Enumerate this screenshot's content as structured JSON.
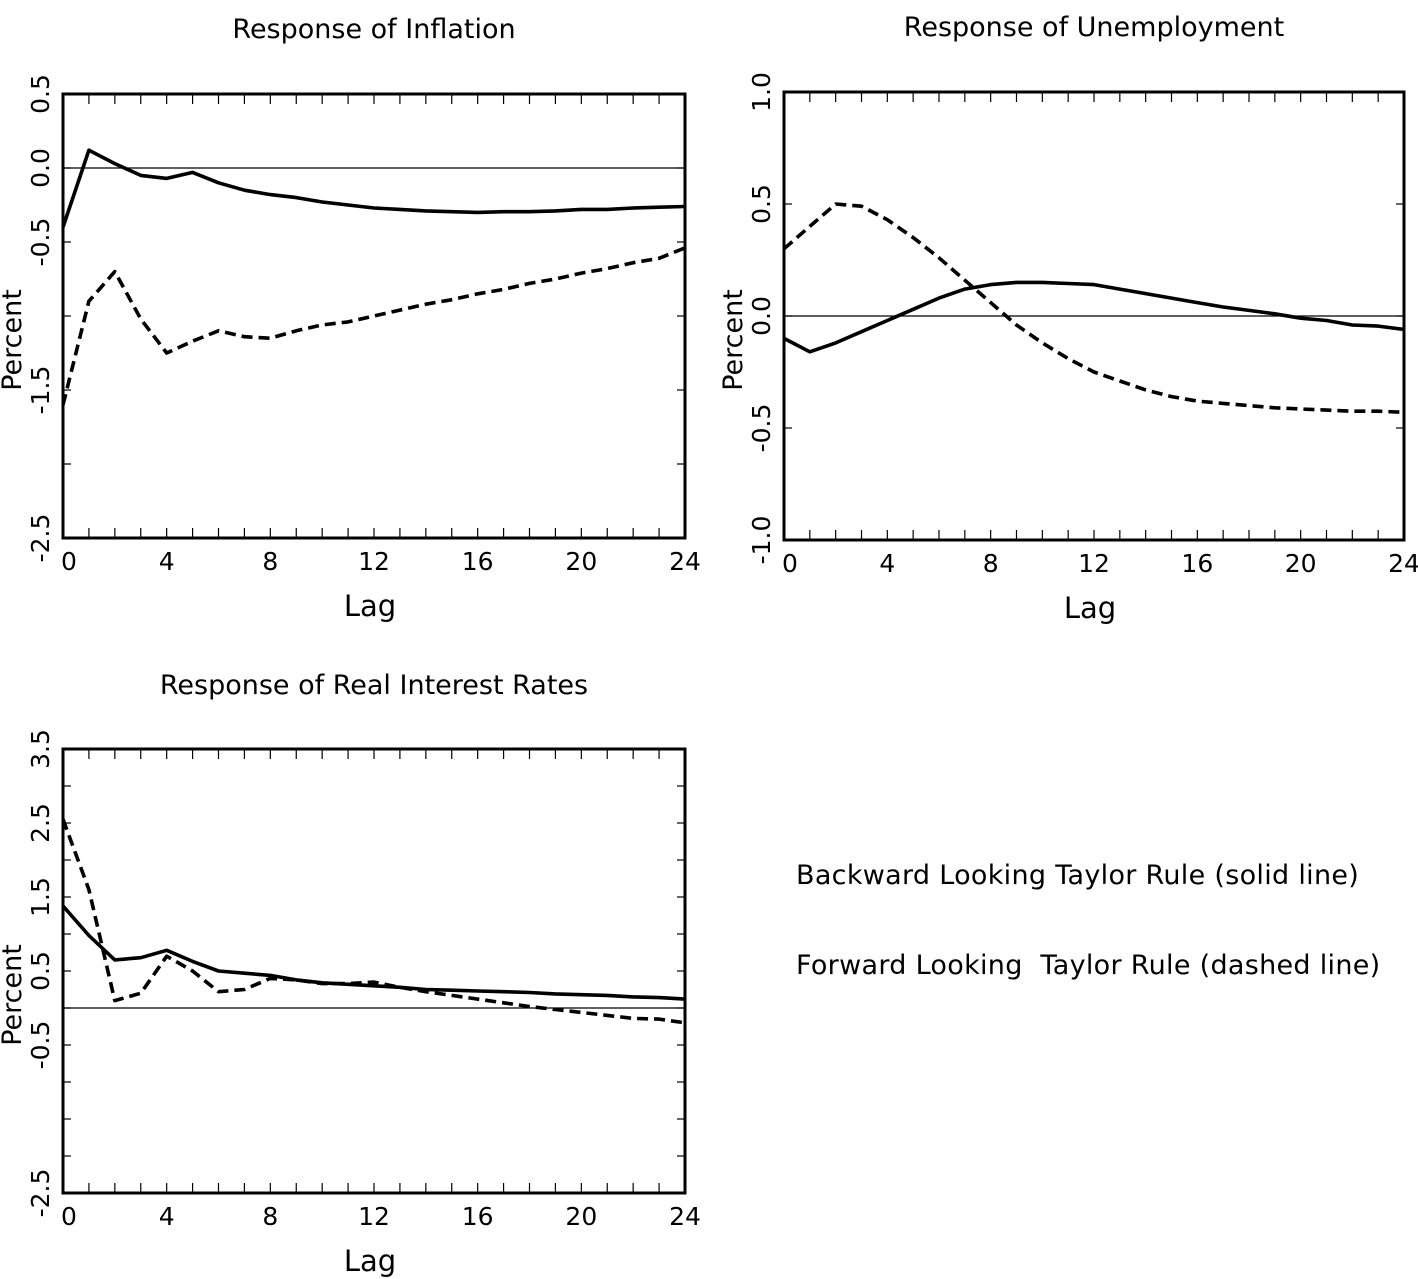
{
  "legend": {
    "solid_text": "Backward Looking Taylor Rule (solid line)",
    "dashed_text": "Forward Looking  Taylor Rule (dashed line)"
  },
  "chart_data": [
    {
      "type": "line",
      "title": "Response of Inflation",
      "xlabel": "Lag",
      "ylabel": "Percent",
      "xlim": [
        0,
        24
      ],
      "ylim": [
        -2.5,
        0.5
      ],
      "xticks": [
        "0",
        "4",
        "8",
        "12",
        "16",
        "20",
        "24"
      ],
      "yticks": [
        "-2.5",
        "-1.5",
        "-0.5",
        "0.0",
        "0.5"
      ],
      "grid": false,
      "zero_line": true,
      "x": [
        0,
        1,
        2,
        3,
        4,
        5,
        6,
        7,
        8,
        9,
        10,
        11,
        12,
        13,
        14,
        15,
        16,
        17,
        18,
        19,
        20,
        21,
        22,
        23,
        24
      ],
      "series": [
        {
          "style": "solid",
          "values": [
            -0.4,
            0.12,
            0.03,
            -0.05,
            -0.07,
            -0.03,
            -0.1,
            -0.15,
            -0.18,
            -0.2,
            -0.23,
            -0.25,
            -0.27,
            -0.28,
            -0.29,
            -0.295,
            -0.3,
            -0.295,
            -0.295,
            -0.29,
            -0.28,
            -0.28,
            -0.27,
            -0.265,
            -0.26
          ]
        },
        {
          "style": "dashed",
          "values": [
            -1.6,
            -0.9,
            -0.7,
            -1.02,
            -1.25,
            -1.17,
            -1.1,
            -1.14,
            -1.15,
            -1.1,
            -1.06,
            -1.04,
            -1.0,
            -0.96,
            -0.92,
            -0.89,
            -0.85,
            -0.82,
            -0.78,
            -0.75,
            -0.71,
            -0.68,
            -0.64,
            -0.61,
            -0.54
          ]
        }
      ]
    },
    {
      "type": "line",
      "title": "Response of Unemployment",
      "xlabel": "Lag",
      "ylabel": "Percent",
      "xlim": [
        0,
        24
      ],
      "ylim": [
        -1.0,
        1.0
      ],
      "xticks": [
        "0",
        "4",
        "8",
        "12",
        "16",
        "20",
        "24"
      ],
      "yticks": [
        "-1.0",
        "-0.5",
        "0.0",
        "0.5",
        "1.0"
      ],
      "grid": false,
      "zero_line": true,
      "x": [
        0,
        1,
        2,
        3,
        4,
        5,
        6,
        7,
        8,
        9,
        10,
        11,
        12,
        13,
        14,
        15,
        16,
        17,
        18,
        19,
        20,
        21,
        22,
        23,
        24
      ],
      "series": [
        {
          "style": "solid",
          "values": [
            -0.1,
            -0.16,
            -0.12,
            -0.07,
            -0.02,
            0.03,
            0.08,
            0.12,
            0.14,
            0.15,
            0.15,
            0.145,
            0.14,
            0.12,
            0.1,
            0.08,
            0.06,
            0.04,
            0.025,
            0.01,
            -0.01,
            -0.02,
            -0.04,
            -0.045,
            -0.06
          ]
        },
        {
          "style": "dashed",
          "values": [
            0.3,
            0.4,
            0.5,
            0.49,
            0.43,
            0.35,
            0.26,
            0.16,
            0.06,
            -0.04,
            -0.12,
            -0.19,
            -0.25,
            -0.29,
            -0.33,
            -0.36,
            -0.38,
            -0.39,
            -0.4,
            -0.41,
            -0.415,
            -0.42,
            -0.425,
            -0.425,
            -0.43
          ]
        }
      ]
    },
    {
      "type": "line",
      "title": "Response of Real Interest Rates",
      "xlabel": "Lag",
      "ylabel": "Percent",
      "xlim": [
        0,
        24
      ],
      "ylim": [
        -2.5,
        3.5
      ],
      "xticks": [
        "0",
        "4",
        "8",
        "12",
        "16",
        "20",
        "24"
      ],
      "yticks": [
        "-2.5",
        "-0.5",
        "0.5",
        "1.5",
        "2.5",
        "3.5"
      ],
      "grid": false,
      "zero_line": true,
      "x": [
        0,
        1,
        2,
        3,
        4,
        5,
        6,
        7,
        8,
        9,
        10,
        11,
        12,
        13,
        14,
        15,
        16,
        17,
        18,
        19,
        20,
        21,
        22,
        23,
        24
      ],
      "series": [
        {
          "style": "solid",
          "values": [
            1.38,
            0.98,
            0.65,
            0.68,
            0.78,
            0.63,
            0.5,
            0.47,
            0.44,
            0.38,
            0.34,
            0.32,
            0.3,
            0.28,
            0.25,
            0.24,
            0.23,
            0.22,
            0.21,
            0.19,
            0.18,
            0.17,
            0.15,
            0.14,
            0.12
          ]
        },
        {
          "style": "dashed",
          "values": [
            2.55,
            1.6,
            0.1,
            0.2,
            0.7,
            0.5,
            0.22,
            0.25,
            0.4,
            0.38,
            0.33,
            0.33,
            0.35,
            0.28,
            0.22,
            0.17,
            0.12,
            0.07,
            0.02,
            -0.02,
            -0.06,
            -0.1,
            -0.14,
            -0.15,
            -0.2
          ]
        }
      ]
    }
  ]
}
